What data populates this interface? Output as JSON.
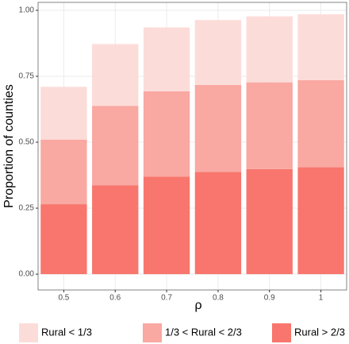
{
  "chart_data": {
    "type": "stacked-bar",
    "x_label": "ρ",
    "y_label": "Proportion of counties",
    "categories": [
      "0.5",
      "0.6",
      "0.7",
      "0.8",
      "0.9",
      "1"
    ],
    "series": [
      {
        "name": "Rural > 2/3",
        "color": "#f8766d",
        "values": [
          0.265,
          0.337,
          0.37,
          0.387,
          0.398,
          0.405
        ]
      },
      {
        "name": "1/3 < Rural < 2/3",
        "color": "#f9a8a2",
        "values": [
          0.245,
          0.301,
          0.323,
          0.33,
          0.329,
          0.33
        ]
      },
      {
        "name": "Rural < 1/3",
        "color": "#fcdcd9",
        "values": [
          0.2,
          0.234,
          0.242,
          0.246,
          0.25,
          0.25
        ]
      }
    ],
    "legend_order": [
      2,
      1,
      0
    ],
    "ylim": [
      -0.06,
      1.03
    ],
    "yticks": [
      {
        "value": 0,
        "label": "0.00"
      },
      {
        "value": 0.25,
        "label": "0.25"
      },
      {
        "value": 0.5,
        "label": "0.50"
      },
      {
        "value": 0.75,
        "label": "0.75"
      },
      {
        "value": 1,
        "label": "1.00"
      }
    ],
    "grid": true
  }
}
